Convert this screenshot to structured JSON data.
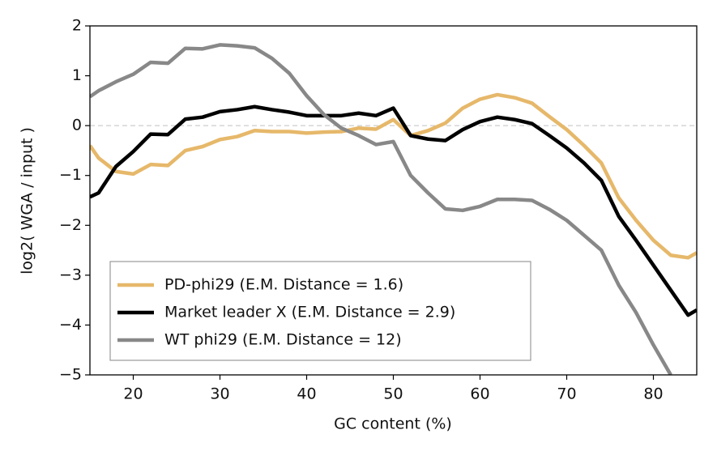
{
  "chart_data": {
    "type": "line",
    "xlabel": "GC content (%)",
    "ylabel": "log2( WGA / input )",
    "x": [
      15,
      16,
      18,
      20,
      22,
      24,
      26,
      28,
      30,
      32,
      34,
      36,
      38,
      40,
      42,
      44,
      46,
      48,
      50,
      52,
      54,
      56,
      58,
      60,
      62,
      64,
      66,
      68,
      70,
      72,
      74,
      76,
      78,
      80,
      82,
      84,
      85
    ],
    "series": [
      {
        "name": "PD-phi29 (E.M. Distance  = 1.6)",
        "color": "#e6b86a",
        "values": [
          -0.4,
          -0.65,
          -0.92,
          -0.97,
          -0.78,
          -0.8,
          -0.5,
          -0.42,
          -0.28,
          -0.22,
          -0.1,
          -0.12,
          -0.12,
          -0.15,
          -0.13,
          -0.12,
          -0.05,
          -0.07,
          0.12,
          -0.2,
          -0.1,
          0.05,
          0.35,
          0.53,
          0.62,
          0.56,
          0.45,
          0.18,
          -0.08,
          -0.4,
          -0.75,
          -1.45,
          -1.9,
          -2.3,
          -2.6,
          -2.65,
          -2.55
        ]
      },
      {
        "name": "Market leader X  (E.M. Distance = 2.9)",
        "color": "#000000",
        "values": [
          -1.43,
          -1.35,
          -0.82,
          -0.52,
          -0.17,
          -0.18,
          0.13,
          0.17,
          0.28,
          0.32,
          0.38,
          0.32,
          0.27,
          0.2,
          0.2,
          0.2,
          0.25,
          0.2,
          0.35,
          -0.2,
          -0.27,
          -0.3,
          -0.08,
          0.08,
          0.17,
          0.12,
          0.04,
          -0.2,
          -0.45,
          -0.75,
          -1.1,
          -1.82,
          -2.3,
          -2.8,
          -3.3,
          -3.8,
          -3.7
        ]
      },
      {
        "name": "WT phi29 (E.M. Distance =  12)",
        "color": "#888888",
        "values": [
          0.58,
          0.7,
          0.88,
          1.03,
          1.27,
          1.25,
          1.55,
          1.54,
          1.62,
          1.6,
          1.56,
          1.35,
          1.05,
          0.6,
          0.22,
          -0.05,
          -0.2,
          -0.38,
          -0.32,
          -1.0,
          -1.35,
          -1.67,
          -1.7,
          -1.62,
          -1.48,
          -1.48,
          -1.5,
          -1.68,
          -1.9,
          -2.2,
          -2.5,
          -3.2,
          -3.75,
          -4.4,
          -5.0,
          null,
          null
        ]
      }
    ],
    "xlim": [
      15,
      85
    ],
    "xticks": [
      20,
      30,
      40,
      50,
      60,
      70,
      80
    ],
    "ylim": [
      -5,
      2
    ],
    "yticks": [
      {
        "value": -5,
        "label": "−5"
      },
      {
        "value": -4,
        "label": "−4"
      },
      {
        "value": -3,
        "label": "−3"
      },
      {
        "value": -2,
        "label": "−2"
      },
      {
        "value": -1,
        "label": "−1"
      },
      0,
      1,
      2
    ],
    "reference_line": 0,
    "legend": "lower left"
  }
}
